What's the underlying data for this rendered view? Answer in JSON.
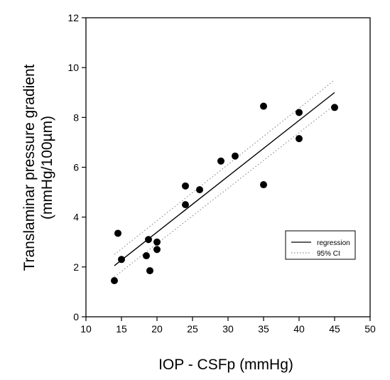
{
  "chart_data": {
    "type": "scatter",
    "title": "",
    "xlabel": "IOP - CSFp   (mmHg)",
    "ylabel": "Translaminar pressure gradient (mmHg/100µm)",
    "ylabel_lines": [
      "Translaminar pressure gradient",
      "(mmHg/100µm)"
    ],
    "xlim": [
      10,
      50
    ],
    "ylim": [
      0,
      12
    ],
    "x_ticks": [
      "10",
      "15",
      "20",
      "25",
      "30",
      "35",
      "40",
      "45",
      "50"
    ],
    "y_ticks": [
      "0",
      "2",
      "4",
      "6",
      "8",
      "10",
      "12"
    ],
    "grid": false,
    "legend_position": "lower-right",
    "points": [
      {
        "x": 14,
        "y": 1.45
      },
      {
        "x": 14.5,
        "y": 3.35
      },
      {
        "x": 15,
        "y": 2.3
      },
      {
        "x": 18.5,
        "y": 2.45
      },
      {
        "x": 18.8,
        "y": 3.1
      },
      {
        "x": 19,
        "y": 1.85
      },
      {
        "x": 20,
        "y": 3.0
      },
      {
        "x": 20,
        "y": 2.7
      },
      {
        "x": 24,
        "y": 5.25
      },
      {
        "x": 24,
        "y": 4.5
      },
      {
        "x": 26,
        "y": 5.1
      },
      {
        "x": 29,
        "y": 6.25
      },
      {
        "x": 31,
        "y": 6.45
      },
      {
        "x": 35,
        "y": 8.45
      },
      {
        "x": 35,
        "y": 5.3
      },
      {
        "x": 40,
        "y": 8.2
      },
      {
        "x": 40,
        "y": 7.15
      },
      {
        "x": 45,
        "y": 8.4
      }
    ],
    "regression": {
      "name": "regression",
      "x": [
        14,
        45
      ],
      "y": [
        2.05,
        9.0
      ]
    },
    "ci_upper": {
      "name": "95% CI",
      "x": [
        14,
        45
      ],
      "y": [
        2.5,
        9.5
      ]
    },
    "ci_lower": {
      "name": "95% CI",
      "x": [
        14,
        45
      ],
      "y": [
        1.6,
        8.5
      ]
    },
    "legend": [
      {
        "label": "regression",
        "style": "solid"
      },
      {
        "label": "95% CI",
        "style": "dotted"
      }
    ],
    "colors": {
      "points": "#000000",
      "regression": "#000000",
      "ci": "#888888"
    }
  }
}
